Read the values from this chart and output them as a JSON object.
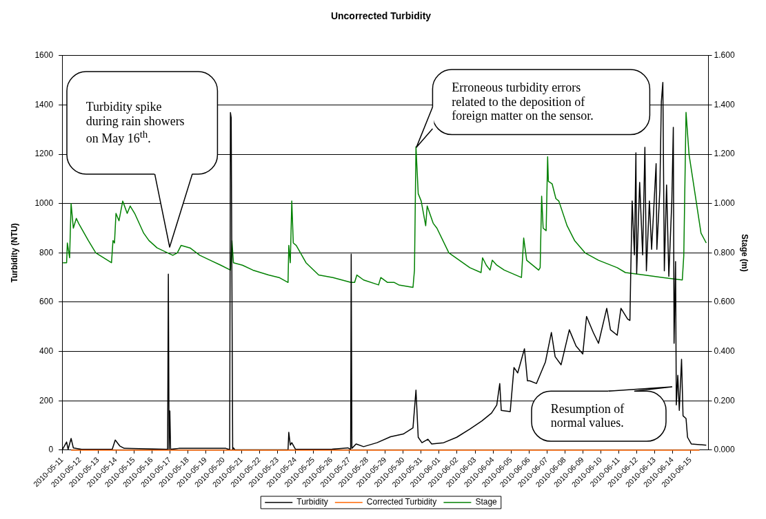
{
  "chart_data": {
    "type": "line",
    "title": "Uncorrected Turbidity",
    "ylabel": "Turbidity (NTU)",
    "y2label": "Stage (m)",
    "xlim": [
      "2010-05-11",
      "2010-06-16"
    ],
    "xticks": [
      "2010-05-11",
      "2010-05-12",
      "2010-05-13",
      "2010-05-14",
      "2010-05-15",
      "2010-05-16",
      "2010-05-17",
      "2010-05-18",
      "2010-05-19",
      "2010-05-20",
      "2010-05-21",
      "2010-05-22",
      "2010-05-23",
      "2010-05-24",
      "2010-05-25",
      "2010-05-26",
      "2010-05-27",
      "2010-05-28",
      "2010-05-29",
      "2010-05-30",
      "2010-05-31",
      "2010-06-01",
      "2010-06-02",
      "2010-06-03",
      "2010-06-04",
      "2010-06-05",
      "2010-06-06",
      "2010-06-07",
      "2010-06-08",
      "2010-06-09",
      "2010-06-10",
      "2010-06-11",
      "2010-06-12",
      "2010-06-13",
      "2010-06-14",
      "2010-06-15"
    ],
    "ylim": [
      0,
      1600
    ],
    "yticks": [
      0,
      200,
      400,
      600,
      800,
      1000,
      1200,
      1400,
      1600
    ],
    "y2lim": [
      0,
      1.6
    ],
    "y2ticks": [
      {
        "value": 0,
        "label": "0.000"
      },
      {
        "value": 0.2,
        "label": "0.200"
      },
      {
        "value": 0.4,
        "label": "0.400"
      },
      {
        "value": 0.6,
        "label": "0.600"
      },
      {
        "value": 0.8,
        "label": "0.800"
      },
      {
        "value": 1.0,
        "label": "1.000"
      },
      {
        "value": 1.2,
        "label": "1.200"
      },
      {
        "value": 1.4,
        "label": "1.400"
      },
      {
        "value": 1.6,
        "label": "1.600"
      }
    ],
    "grid": "y",
    "legend": "bottom",
    "marker": "none",
    "series": [
      {
        "name": "Turbidity",
        "color": "#000000",
        "x": [
          "2010-05-11T00:00",
          "2010-05-11T06:00",
          "2010-05-11T08:00",
          "2010-05-11T12:00",
          "2010-05-11T15:00",
          "2010-05-12T02:00",
          "2010-05-13T19:00",
          "2010-05-13T23:00",
          "2010-05-14T05:00",
          "2010-05-14T11:00",
          "2010-05-16T21:00",
          "2010-05-16T22:00",
          "2010-05-16T23:00",
          "2010-05-17T00:00",
          "2010-05-17T01:00",
          "2010-05-17T12:00",
          "2010-05-20T03:00",
          "2010-05-20T08:00",
          "2010-05-20T09:00",
          "2010-05-20T10:00",
          "2010-05-20T12:00",
          "2010-05-20T13:00",
          "2010-05-20T15:00",
          "2010-05-23T14:00",
          "2010-05-23T15:00",
          "2010-05-23T17:00",
          "2010-05-23T19:00",
          "2010-05-24T00:00",
          "2010-05-26T01:00",
          "2010-05-26T22:00",
          "2010-05-27T01:40",
          "2010-05-27T02:25",
          "2010-05-27T03:20",
          "2010-05-27T09:00",
          "2010-05-27T19:00",
          "2010-05-28T13:00",
          "2010-05-29T07:00",
          "2010-05-30T00:00",
          "2010-05-30T13:00",
          "2010-05-30T17:00",
          "2010-05-30T20:00",
          "2010-05-31T01:00",
          "2010-05-31T09:00",
          "2010-05-31T14:00",
          "2010-06-01T06:00",
          "2010-06-01T23:30",
          "2010-06-02T17:00",
          "2010-06-03T09:00",
          "2010-06-03T22:00",
          "2010-06-04T05:00",
          "2010-06-04T09:00",
          "2010-06-04T11:00",
          "2010-06-04T23:00",
          "2010-06-05T04:00",
          "2010-06-05T09:00",
          "2010-06-05T18:00",
          "2010-06-05T22:00",
          "2010-06-06T01:00",
          "2010-06-06T10:00",
          "2010-06-06T22:00",
          "2010-06-07T06:00",
          "2010-06-07T11:00",
          "2010-06-07T19:00",
          "2010-06-08T06:00",
          "2010-06-08T15:00",
          "2010-06-09T00:00",
          "2010-06-09T05:00",
          "2010-06-09T14:00",
          "2010-06-09T21:00",
          "2010-06-10T08:00",
          "2010-06-10T13:00",
          "2010-06-10T22:00",
          "2010-06-11T03:00",
          "2010-06-11T12:00",
          "2010-06-11T15:00",
          "2010-06-11T16:00",
          "2010-06-11T18:00",
          "2010-06-11T21:00",
          "2010-06-11T23:00",
          "2010-06-12T00:00",
          "2010-06-12T04:00",
          "2010-06-12T08:00",
          "2010-06-12T11:00",
          "2010-06-12T13:00",
          "2010-06-12T17:00",
          "2010-06-12T20:00",
          "2010-06-13T02:00",
          "2010-06-13T03:00",
          "2010-06-13T07:00",
          "2010-06-13T09:00",
          "2010-06-13T11:00",
          "2010-06-13T13:00",
          "2010-06-13T16:00",
          "2010-06-13T19:00",
          "2010-06-13T23:00",
          "2010-06-14T01:00",
          "2010-06-14T02:00",
          "2010-06-14T04:00",
          "2010-06-14T05:00",
          "2010-06-14T07:00",
          "2010-06-14T09:00",
          "2010-06-14T12:00",
          "2010-06-14T14:00",
          "2010-06-14T18:00",
          "2010-06-14T20:00",
          "2010-06-15T01:00",
          "2010-06-15T21:00"
        ],
        "values": [
          0,
          33,
          3,
          47,
          9,
          3,
          3,
          41,
          17,
          7,
          3,
          714,
          3,
          159,
          3,
          7,
          7,
          2,
          1369,
          1347,
          3,
          9,
          1,
          1,
          72,
          20,
          30,
          3,
          4,
          9,
          3,
          795,
          7,
          25,
          14,
          30,
          54,
          65,
          90,
          243,
          52,
          30,
          44,
          25,
          30,
          52,
          85,
          118,
          150,
          183,
          270,
          161,
          156,
          335,
          313,
          411,
          281,
          281,
          270,
          357,
          477,
          379,
          346,
          488,
          422,
          390,
          542,
          477,
          433,
          575,
          488,
          466,
          575,
          531,
          526,
          705,
          1010,
          792,
          1206,
          716,
          1086,
          792,
          1228,
          727,
          1010,
          814,
          1162,
          814,
          1054,
          1413,
          1491,
          727,
          1075,
          705,
          1010,
          1309,
          433,
          765,
          183,
          303,
          161,
          368,
          139,
          128,
          52,
          25,
          20
        ]
      },
      {
        "name": "Corrected Turbidity",
        "color": "#ff6600",
        "x": [
          "2010-05-11T12:00",
          "2010-06-15T12:00"
        ],
        "values": [
          0,
          0
        ]
      },
      {
        "name": "Stage",
        "color": "#008000",
        "axis": "y2",
        "x": [
          "2010-05-11T01:00",
          "2010-05-11T06:00",
          "2010-05-11T07:00",
          "2010-05-11T10:00",
          "2010-05-11T12:00",
          "2010-05-11T15:00",
          "2010-05-11T19:00",
          "2010-05-11T22:00",
          "2010-05-12T11:00",
          "2010-05-12T21:00",
          "2010-05-13T18:00",
          "2010-05-13T20:00",
          "2010-05-13T22:00",
          "2010-05-14T00:00",
          "2010-05-14T04:00",
          "2010-05-14T09:00",
          "2010-05-14T15:00",
          "2010-05-14T19:00",
          "2010-05-15T01:00",
          "2010-05-15T13:00",
          "2010-05-15T20:00",
          "2010-05-16T07:00",
          "2010-05-16T21:00",
          "2010-05-17T04:00",
          "2010-05-17T10:00",
          "2010-05-17T15:00",
          "2010-05-18T03:00",
          "2010-05-18T16:00",
          "2010-05-19T06:00",
          "2010-05-19T20:00",
          "2010-05-20T09:00",
          "2010-05-20T11:00",
          "2010-05-20T13:00",
          "2010-05-21T01:00",
          "2010-05-21T15:00",
          "2010-05-22T12:00",
          "2010-05-23T02:00",
          "2010-05-23T14:00",
          "2010-05-23T15:00",
          "2010-05-23T17:00",
          "2010-05-23T19:00",
          "2010-05-23T21:00",
          "2010-05-24T01:00",
          "2010-05-24T14:00",
          "2010-05-25T07:00",
          "2010-05-26T02:00",
          "2010-05-27T02:00",
          "2010-05-27T07:00",
          "2010-05-27T10:00",
          "2010-05-27T19:00",
          "2010-05-28T15:00",
          "2010-05-28T18:00",
          "2010-05-29T03:00",
          "2010-05-29T12:00",
          "2010-05-29T18:00",
          "2010-05-30T13:00",
          "2010-05-30T15:00",
          "2010-05-30T17:00",
          "2010-05-30T20:00",
          "2010-05-31T00:00",
          "2010-05-31T06:00",
          "2010-05-31T08:00",
          "2010-05-31T16:00",
          "2010-05-31T21:00",
          "2010-06-01T13:00",
          "2010-06-02T03:00",
          "2010-06-02T17:00",
          "2010-06-03T08:00",
          "2010-06-03T10:00",
          "2010-06-03T15:00",
          "2010-06-03T20:00",
          "2010-06-03T23:00",
          "2010-06-04T05:00",
          "2010-06-04T15:00",
          "2010-06-05T14:00",
          "2010-06-05T17:00",
          "2010-06-05T21:00",
          "2010-06-06T13:00",
          "2010-06-06T15:00",
          "2010-06-06T17:00",
          "2010-06-06T19:00",
          "2010-06-06T23:00",
          "2010-06-07T01:00",
          "2010-06-07T02:00",
          "2010-06-07T07:00",
          "2010-06-07T12:00",
          "2010-06-07T16:00",
          "2010-06-08T03:00",
          "2010-06-08T13:00",
          "2010-06-09T03:00",
          "2010-06-09T21:00",
          "2010-06-10T22:00",
          "2010-06-11T09:00",
          "2010-06-12T10:00",
          "2010-06-13T11:00",
          "2010-06-14T13:00",
          "2010-06-14T15:00",
          "2010-06-14T18:00",
          "2010-06-14T22:00",
          "2010-06-15T05:00",
          "2010-06-15T14:00",
          "2010-06-15T21:00"
        ],
        "values": [
          0.76,
          0.76,
          0.84,
          0.78,
          1.0,
          0.9,
          0.94,
          0.92,
          0.85,
          0.8,
          0.76,
          0.85,
          0.84,
          0.96,
          0.93,
          1.01,
          0.96,
          0.99,
          0.96,
          0.88,
          0.85,
          0.82,
          0.8,
          0.79,
          0.8,
          0.83,
          0.82,
          0.79,
          0.77,
          0.75,
          0.73,
          0.85,
          0.76,
          0.75,
          0.73,
          0.71,
          0.7,
          0.68,
          0.83,
          0.76,
          1.01,
          0.84,
          0.83,
          0.76,
          0.71,
          0.7,
          0.68,
          0.68,
          0.71,
          0.69,
          0.67,
          0.7,
          0.68,
          0.68,
          0.67,
          0.66,
          0.73,
          1.23,
          1.04,
          1.01,
          0.91,
          0.99,
          0.92,
          0.9,
          0.8,
          0.77,
          0.74,
          0.72,
          0.78,
          0.75,
          0.73,
          0.77,
          0.75,
          0.73,
          0.7,
          0.86,
          0.77,
          0.73,
          0.74,
          1.03,
          0.9,
          0.89,
          1.19,
          1.09,
          1.08,
          1.02,
          1.01,
          0.91,
          0.85,
          0.8,
          0.77,
          0.74,
          0.72,
          0.71,
          0.7,
          0.69,
          0.79,
          1.37,
          1.2,
          1.06,
          0.88,
          0.84
        ]
      }
    ],
    "annotations": [
      "Turbidity spike during rain showers on May 16$^{th}$.",
      "Erroneous turbidity errors related to the deposition of foreign matter on the sensor.",
      "Resumption of normal values."
    ]
  }
}
